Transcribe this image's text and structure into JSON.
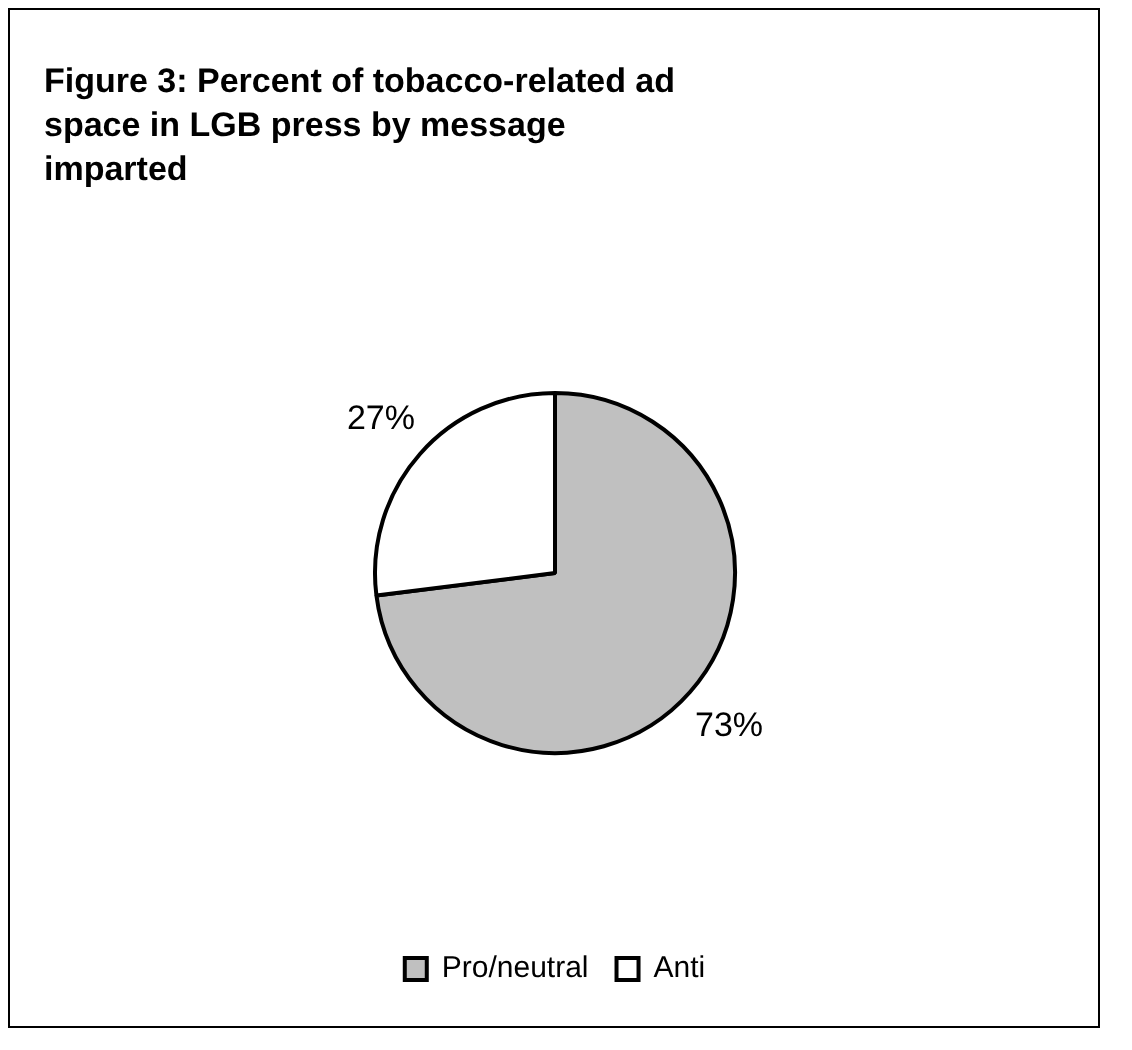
{
  "chart_data": {
    "type": "pie",
    "title": "Figure 3:  Percent of tobacco-related ad space in LGB press by message imparted",
    "categories": [
      "Pro/neutral",
      "Anti"
    ],
    "values": [
      73,
      27
    ],
    "colors": [
      "#c0c0c0",
      "#ffffff"
    ],
    "value_labels": [
      "73%",
      "27%"
    ],
    "legend": "bottom"
  }
}
